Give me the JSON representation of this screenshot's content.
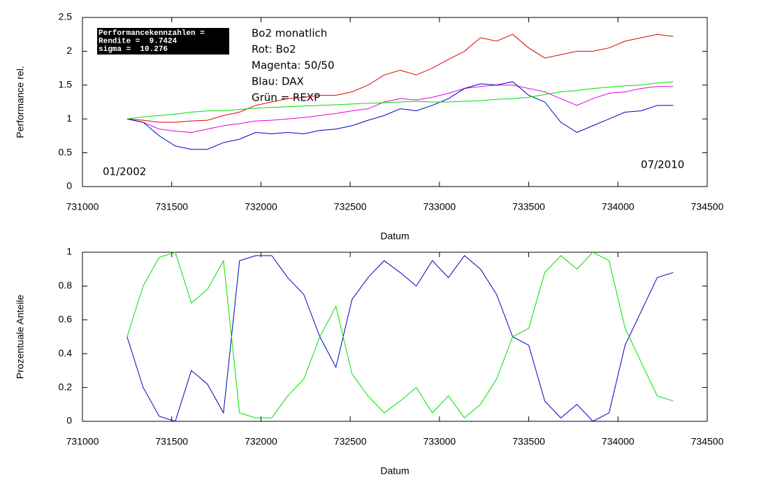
{
  "chart_data": [
    {
      "type": "line",
      "xlabel": "Datum",
      "ylabel": "Performance rel.",
      "stats_box": [
        "Performancekennzahlen =",
        "Rendite =  9.7424",
        "sigma =  10.276"
      ],
      "notes": [
        "Bo2 monatlich",
        "Rot: Bo2",
        "Magenta: 50/50",
        "Blau: DAX",
        "Grün = REXP"
      ],
      "start_label": "01/2002",
      "end_label": "07/2010",
      "x": [
        731250,
        731340,
        731430,
        731520,
        731610,
        731700,
        731790,
        731880,
        731970,
        732060,
        732150,
        732240,
        732330,
        732420,
        732510,
        732600,
        732690,
        732780,
        732870,
        732960,
        733050,
        733140,
        733230,
        733320,
        733410,
        733500,
        733590,
        733680,
        733770,
        733860,
        733950,
        734040,
        734130,
        734220,
        734310
      ],
      "series": [
        {
          "color": "#e00000",
          "values": [
            1.0,
            0.98,
            0.95,
            0.95,
            0.97,
            0.98,
            1.05,
            1.1,
            1.2,
            1.25,
            1.3,
            1.32,
            1.35,
            1.35,
            1.4,
            1.5,
            1.65,
            1.72,
            1.65,
            1.75,
            1.88,
            2.0,
            2.2,
            2.15,
            2.25,
            2.05,
            1.9,
            1.95,
            2.0,
            2.0,
            2.05,
            2.15,
            2.2,
            2.25,
            2.22
          ]
        },
        {
          "color": "#e000e0",
          "values": [
            1.0,
            0.95,
            0.85,
            0.82,
            0.8,
            0.85,
            0.9,
            0.93,
            0.97,
            0.98,
            1.0,
            1.02,
            1.05,
            1.08,
            1.12,
            1.15,
            1.25,
            1.3,
            1.28,
            1.32,
            1.38,
            1.45,
            1.48,
            1.5,
            1.5,
            1.45,
            1.4,
            1.3,
            1.2,
            1.3,
            1.38,
            1.4,
            1.45,
            1.48,
            1.48
          ]
        },
        {
          "color": "#0000c0",
          "values": [
            1.0,
            0.95,
            0.75,
            0.6,
            0.55,
            0.55,
            0.65,
            0.7,
            0.8,
            0.78,
            0.8,
            0.78,
            0.83,
            0.85,
            0.9,
            0.98,
            1.05,
            1.15,
            1.12,
            1.2,
            1.3,
            1.45,
            1.52,
            1.5,
            1.55,
            1.35,
            1.25,
            0.95,
            0.8,
            0.9,
            1.0,
            1.1,
            1.12,
            1.2,
            1.2
          ]
        },
        {
          "color": "#00e000",
          "values": [
            1.0,
            1.03,
            1.05,
            1.07,
            1.1,
            1.12,
            1.12,
            1.14,
            1.16,
            1.17,
            1.18,
            1.19,
            1.2,
            1.21,
            1.22,
            1.23,
            1.24,
            1.25,
            1.26,
            1.25,
            1.25,
            1.26,
            1.27,
            1.29,
            1.3,
            1.32,
            1.36,
            1.4,
            1.42,
            1.45,
            1.47,
            1.49,
            1.5,
            1.53,
            1.55
          ]
        }
      ],
      "xlim": [
        731000,
        734500
      ],
      "xticks": [
        731000,
        731500,
        732000,
        732500,
        733000,
        733500,
        734000,
        734500
      ],
      "ylim": [
        0,
        2.5
      ],
      "yticks": [
        0,
        0.5,
        1,
        1.5,
        2,
        2.5
      ]
    },
    {
      "type": "line",
      "xlabel": "Datum",
      "ylabel": "Prozentuale Anteile",
      "x": [
        731250,
        731340,
        731430,
        731520,
        731610,
        731700,
        731790,
        731880,
        731970,
        732060,
        732150,
        732240,
        732330,
        732420,
        732510,
        732600,
        732690,
        732780,
        732870,
        732960,
        733050,
        733140,
        733230,
        733320,
        733410,
        733500,
        733590,
        733680,
        733770,
        733860,
        733950,
        734040,
        734130,
        734220,
        734310
      ],
      "series": [
        {
          "color": "#0000c0",
          "values": [
            0.5,
            0.2,
            0.03,
            0.0,
            0.3,
            0.22,
            0.05,
            0.95,
            0.98,
            0.98,
            0.85,
            0.75,
            0.5,
            0.32,
            0.72,
            0.85,
            0.95,
            0.88,
            0.8,
            0.95,
            0.85,
            0.98,
            0.9,
            0.75,
            0.5,
            0.45,
            0.12,
            0.02,
            0.1,
            0.0,
            0.05,
            0.45,
            0.65,
            0.85,
            0.88
          ]
        },
        {
          "color": "#00e000",
          "values": [
            0.5,
            0.8,
            0.97,
            1.0,
            0.7,
            0.78,
            0.95,
            0.05,
            0.02,
            0.02,
            0.15,
            0.25,
            0.5,
            0.68,
            0.28,
            0.15,
            0.05,
            0.12,
            0.2,
            0.05,
            0.15,
            0.02,
            0.1,
            0.25,
            0.5,
            0.55,
            0.88,
            0.98,
            0.9,
            1.0,
            0.95,
            0.55,
            0.35,
            0.15,
            0.12
          ]
        }
      ],
      "xlim": [
        731000,
        734500
      ],
      "xticks": [
        731000,
        731500,
        732000,
        732500,
        733000,
        733500,
        734000,
        734500
      ],
      "ylim": [
        0,
        1
      ],
      "yticks": [
        0,
        0.2,
        0.4,
        0.6,
        0.8,
        1
      ]
    }
  ]
}
